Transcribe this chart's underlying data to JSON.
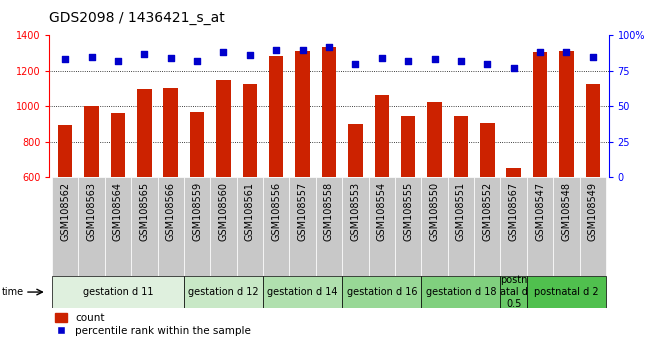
{
  "title": "GDS2098 / 1436421_s_at",
  "samples": [
    "GSM108562",
    "GSM108563",
    "GSM108564",
    "GSM108565",
    "GSM108566",
    "GSM108559",
    "GSM108560",
    "GSM108561",
    "GSM108556",
    "GSM108557",
    "GSM108558",
    "GSM108553",
    "GSM108554",
    "GSM108555",
    "GSM108550",
    "GSM108551",
    "GSM108552",
    "GSM108567",
    "GSM108547",
    "GSM108548",
    "GSM108549"
  ],
  "bar_values": [
    895,
    1000,
    960,
    1095,
    1100,
    970,
    1150,
    1125,
    1285,
    1310,
    1335,
    900,
    1065,
    945,
    1025,
    945,
    905,
    650,
    1305,
    1310,
    1125
  ],
  "percentile_values": [
    83,
    85,
    82,
    87,
    84,
    82,
    88,
    86,
    90,
    90,
    92,
    80,
    84,
    82,
    83,
    82,
    80,
    77,
    88,
    88,
    85
  ],
  "bar_color": "#cc2200",
  "dot_color": "#0000cc",
  "ylim_left": [
    600,
    1400
  ],
  "ylim_right": [
    0,
    100
  ],
  "yticks_left": [
    600,
    800,
    1000,
    1200,
    1400
  ],
  "yticks_right": [
    0,
    25,
    50,
    75,
    100
  ],
  "ytick_labels_right": [
    "0",
    "25",
    "50",
    "75",
    "100%"
  ],
  "groups": [
    {
      "label": "gestation d 11",
      "start": 0,
      "end": 4,
      "color": "#dff0de"
    },
    {
      "label": "gestation d 12",
      "start": 5,
      "end": 7,
      "color": "#c8e8c6"
    },
    {
      "label": "gestation d 14",
      "start": 8,
      "end": 10,
      "color": "#b0e0ae"
    },
    {
      "label": "gestation d 16",
      "start": 11,
      "end": 13,
      "color": "#98d896"
    },
    {
      "label": "gestation d 18",
      "start": 14,
      "end": 16,
      "color": "#80d07e"
    },
    {
      "label": "postn\natal d\n0.5",
      "start": 17,
      "end": 17,
      "color": "#68c866"
    },
    {
      "label": "postnatal d 2",
      "start": 18,
      "end": 20,
      "color": "#50c04e"
    }
  ],
  "xlabel": "time",
  "legend_count_label": "count",
  "legend_pct_label": "percentile rank within the sample",
  "background_color": "#ffffff",
  "title_fontsize": 10,
  "tick_fontsize": 7,
  "label_fontsize": 7,
  "group_fontsize": 7
}
